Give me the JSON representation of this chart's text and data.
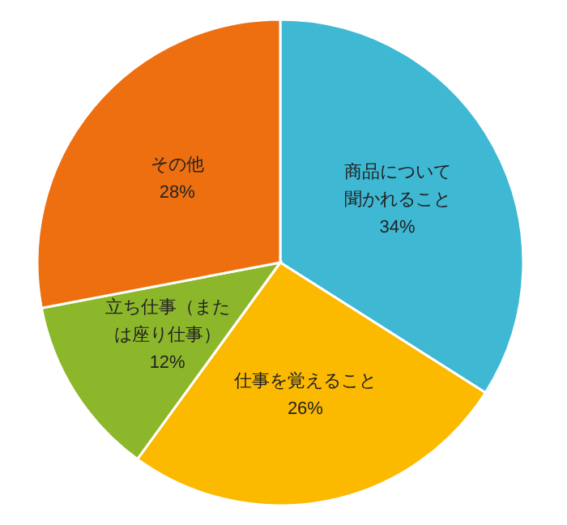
{
  "chart_data": {
    "type": "pie",
    "categories": [
      "商品について聞かれること",
      "仕事を覚えること",
      "立ち仕事（または座り仕事）",
      "その他"
    ],
    "values": [
      34,
      26,
      12,
      28
    ],
    "value_labels": [
      "34%",
      "26%",
      "12%",
      "28%"
    ],
    "colors": [
      "#3fb8d4",
      "#fbb900",
      "#8db72a",
      "#ee6f0f"
    ]
  }
}
